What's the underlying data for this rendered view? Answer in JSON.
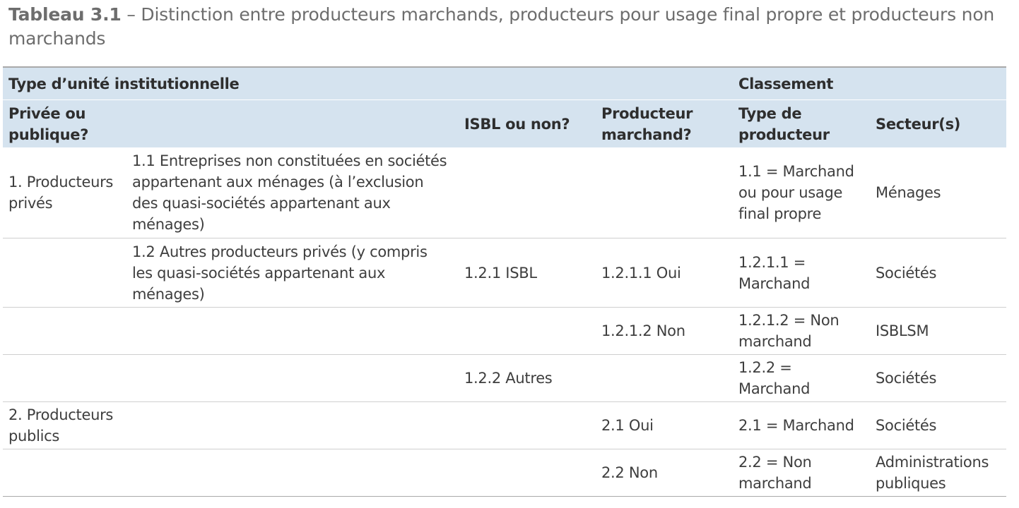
{
  "caption": {
    "label": "Tableau 3.1",
    "text": " – Distinction entre producteurs marchands, producteurs pour usage final propre et producteurs non marchands"
  },
  "table": {
    "group_headers": {
      "type_unite": "Type d’unité institutionnelle",
      "classement": "Classement"
    },
    "column_headers": {
      "privee": "Privée ou publique?",
      "isbl": "ISBL ou non?",
      "marchand": "Producteur marchand?",
      "type_producteur": "Type de producteur",
      "secteurs": "Secteur(s)"
    },
    "rows": [
      {
        "privee": "1. Producteurs privés",
        "detail": "1.1 Entreprises non constituées en sociétés appartenant aux ménages (à l’exclusion des quasi-sociétés appartenant aux ménages)",
        "isbl": "",
        "marchand": "",
        "type_producteur": "1.1 = Marchand ou pour usage final propre",
        "secteurs": "Ménages"
      },
      {
        "privee": "",
        "detail": "1.2 Autres producteurs privés (y compris les quasi-sociétés appartenant aux ménages)",
        "isbl": "1.2.1 ISBL",
        "marchand": "1.2.1.1 Oui",
        "type_producteur": "1.2.1.1 = Marchand",
        "secteurs": "Sociétés"
      },
      {
        "privee": "",
        "detail": "",
        "isbl": "",
        "marchand": "1.2.1.2 Non",
        "type_producteur": "1.2.1.2 = Non marchand",
        "secteurs": "ISBLSM"
      },
      {
        "privee": "",
        "detail": "",
        "isbl": "1.2.2 Autres",
        "marchand": "",
        "type_producteur": "1.2.2 = Marchand",
        "secteurs": "Sociétés"
      },
      {
        "privee": "2. Producteurs publics",
        "detail": "",
        "isbl": "",
        "marchand": "2.1 Oui",
        "type_producteur": "2.1 = Marchand",
        "secteurs": "Sociétés"
      },
      {
        "privee": "",
        "detail": "",
        "isbl": "",
        "marchand": "2.2 Non",
        "type_producteur": "2.2 = Non marchand",
        "secteurs": "Administrations publiques"
      }
    ]
  },
  "colors": {
    "header_bg": "#d5e3ef",
    "caption_text": "#6d6d6d",
    "body_text": "#3e3e3e",
    "rule": "#cfcfcf"
  }
}
